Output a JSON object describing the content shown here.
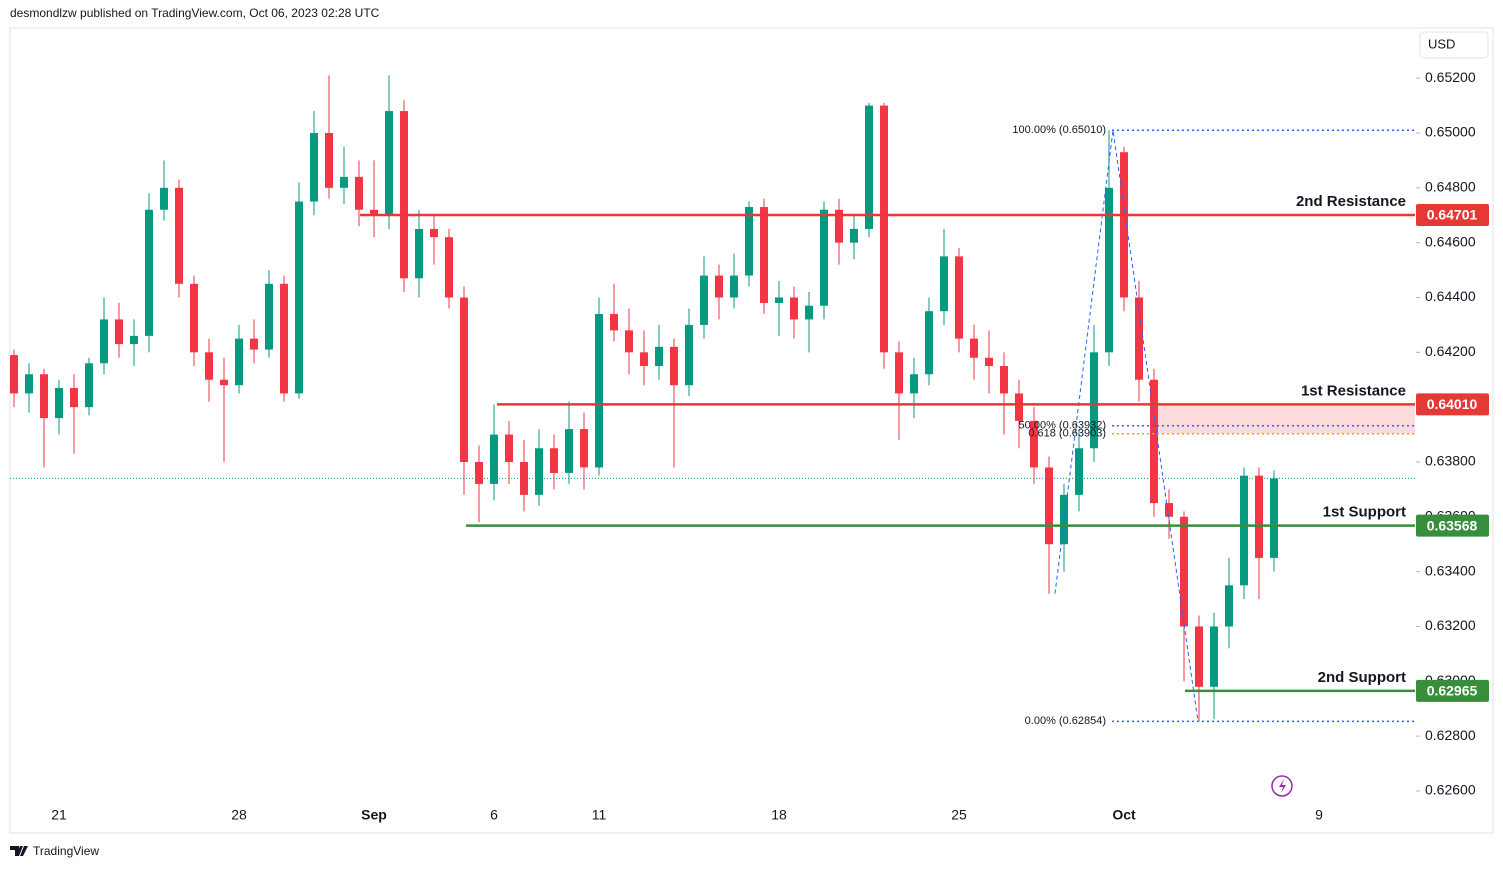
{
  "chart_data": {
    "type": "candlestick",
    "header": "desmondlzw published on TradingView.com, Oct 06, 2023 02:28 UTC",
    "currency": "USD",
    "brand": "TradingView",
    "up_color": "#089981",
    "down_color": "#f23645",
    "categories": [
      null,
      null,
      null,
      "21",
      null,
      null,
      null,
      null,
      null,
      null,
      null,
      null,
      null,
      null,
      null,
      "28",
      null,
      null,
      null,
      null,
      null,
      null,
      null,
      null,
      "Sep",
      null,
      null,
      null,
      null,
      null,
      null,
      null,
      "6",
      null,
      null,
      null,
      null,
      null,
      null,
      "11",
      null,
      null,
      null,
      null,
      null,
      null,
      null,
      null,
      null,
      null,
      null,
      "18",
      null,
      null,
      null,
      null,
      null,
      null,
      null,
      null,
      null,
      null,
      null,
      "25",
      null,
      null,
      null,
      null,
      null,
      null,
      null,
      null,
      null,
      null,
      "Oct",
      null,
      null,
      null,
      null,
      null,
      null,
      null,
      null,
      null,
      null,
      null,
      null,
      "9"
    ],
    "open": [
      0.6419,
      0.6405,
      0.6412,
      0.6396,
      0.6407,
      0.64,
      0.6416,
      0.6432,
      0.6423,
      0.6426,
      0.6472,
      0.648,
      0.6445,
      0.642,
      0.641,
      0.6408,
      0.6425,
      0.6421,
      0.6445,
      0.6405,
      0.6475,
      0.65,
      0.648,
      0.6484,
      0.6472,
      0.647,
      0.6508,
      0.6447,
      0.6465,
      0.6462,
      0.644,
      0.638,
      0.6372,
      0.639,
      0.638,
      0.6368,
      0.6385,
      0.6376,
      0.6392,
      0.6378,
      0.6434,
      0.6428,
      0.642,
      0.6415,
      0.6422,
      0.6408,
      0.643,
      0.6448,
      0.644,
      0.6448,
      0.6473,
      0.6438,
      0.644,
      0.6432,
      0.6437,
      0.6472,
      0.646,
      0.6465,
      0.651,
      0.642,
      0.6405,
      0.6412,
      0.6435,
      0.6455,
      0.6425,
      0.6418,
      0.6415,
      0.6405,
      0.6395,
      0.6378,
      0.635,
      0.6368,
      0.6385,
      0.642,
      0.6493,
      0.644,
      0.641,
      0.6365,
      0.636,
      0.632,
      0.6298,
      0.632,
      0.6335,
      0.6375,
      0.6345,
      null,
      null,
      null
    ],
    "high": [
      0.6421,
      0.6416,
      0.6414,
      0.641,
      0.6412,
      0.6418,
      0.644,
      0.6438,
      0.6432,
      0.6478,
      0.649,
      0.6483,
      0.6448,
      0.6425,
      0.6418,
      0.643,
      0.6432,
      0.645,
      0.6448,
      0.6482,
      0.6508,
      0.6521,
      0.6495,
      0.649,
      0.649,
      0.6521,
      0.6512,
      0.6472,
      0.647,
      0.6465,
      0.6444,
      0.6386,
      0.6401,
      0.6395,
      0.6388,
      0.6392,
      0.639,
      0.6402,
      0.6398,
      0.644,
      0.6445,
      0.6436,
      0.6428,
      0.643,
      0.6425,
      0.6436,
      0.6455,
      0.6452,
      0.6456,
      0.6475,
      0.6476,
      0.6446,
      0.6444,
      0.6442,
      0.6475,
      0.6476,
      0.647,
      0.6511,
      0.6511,
      0.6424,
      0.6418,
      0.644,
      0.6465,
      0.6458,
      0.643,
      0.6428,
      0.642,
      0.641,
      0.64,
      0.6382,
      0.6372,
      0.6392,
      0.643,
      0.6501,
      0.6495,
      0.6446,
      0.6414,
      0.637,
      0.6362,
      0.6324,
      0.6325,
      0.6345,
      0.6378,
      0.6378,
      0.6377,
      null,
      null,
      null
    ],
    "low": [
      0.64,
      0.6398,
      0.6378,
      0.639,
      0.6383,
      0.6397,
      0.6412,
      0.6418,
      0.6415,
      0.642,
      0.6468,
      0.644,
      0.6415,
      0.6402,
      0.638,
      0.6405,
      0.6416,
      0.6418,
      0.6402,
      0.6403,
      0.647,
      0.6476,
      0.6474,
      0.6466,
      0.6462,
      0.6465,
      0.6442,
      0.644,
      0.6452,
      0.6436,
      0.6368,
      0.6358,
      0.6366,
      0.6372,
      0.6362,
      0.6364,
      0.637,
      0.6372,
      0.637,
      0.6375,
      0.6424,
      0.6412,
      0.6408,
      0.641,
      0.6378,
      0.6404,
      0.6425,
      0.6432,
      0.6436,
      0.6444,
      0.6434,
      0.6426,
      0.6425,
      0.642,
      0.6432,
      0.6452,
      0.6454,
      0.6462,
      0.6414,
      0.6388,
      0.6396,
      0.6408,
      0.643,
      0.642,
      0.641,
      0.6405,
      0.639,
      0.6385,
      0.6372,
      0.6332,
      0.634,
      0.6362,
      0.638,
      0.6415,
      0.6435,
      0.6402,
      0.636,
      0.6352,
      0.63,
      0.62854,
      0.62862,
      0.6312,
      0.633,
      0.633,
      0.634,
      null,
      null,
      null
    ],
    "close": [
      0.6405,
      0.6412,
      0.6396,
      0.6407,
      0.64,
      0.6416,
      0.6432,
      0.6423,
      0.6426,
      0.6472,
      0.648,
      0.6445,
      0.642,
      0.641,
      0.6408,
      0.6425,
      0.6421,
      0.6445,
      0.6405,
      0.6475,
      0.65,
      0.648,
      0.6484,
      0.6472,
      0.647,
      0.6508,
      0.6447,
      0.6465,
      0.6462,
      0.644,
      0.638,
      0.6372,
      0.639,
      0.638,
      0.6368,
      0.6385,
      0.6376,
      0.6392,
      0.6378,
      0.6434,
      0.6428,
      0.642,
      0.6415,
      0.6422,
      0.6408,
      0.643,
      0.6448,
      0.644,
      0.6448,
      0.6473,
      0.6438,
      0.644,
      0.6432,
      0.6437,
      0.6472,
      0.646,
      0.6465,
      0.651,
      0.642,
      0.6405,
      0.6412,
      0.6435,
      0.6455,
      0.6425,
      0.6418,
      0.6415,
      0.6405,
      0.6395,
      0.6378,
      0.635,
      0.6368,
      0.6385,
      0.642,
      0.648,
      0.644,
      0.641,
      0.6365,
      0.636,
      0.632,
      0.6298,
      0.632,
      0.6335,
      0.6375,
      0.6345,
      0.6374,
      null,
      null,
      null
    ],
    "ylim": [
      0.62567,
      0.65383
    ],
    "yticks": [
      {
        "value": 0.626,
        "label": "0.62600"
      },
      {
        "value": 0.628,
        "label": "0.62800"
      },
      {
        "value": 0.63,
        "label": "0.63000"
      },
      {
        "value": 0.632,
        "label": "0.63200"
      },
      {
        "value": 0.634,
        "label": "0.63400"
      },
      {
        "value": 0.636,
        "label": "0.63600"
      },
      {
        "value": 0.638,
        "label": "0.63800"
      },
      {
        "value": 0.64,
        "label": "0.64000"
      },
      {
        "value": 0.642,
        "label": "0.64200"
      },
      {
        "value": 0.644,
        "label": "0.64400"
      },
      {
        "value": 0.646,
        "label": "0.64600"
      },
      {
        "value": 0.648,
        "label": "0.64800"
      },
      {
        "value": 0.65,
        "label": "0.65000"
      },
      {
        "value": 0.652,
        "label": "0.65200"
      }
    ],
    "levels": [
      {
        "name": "2nd Resistance",
        "value": 0.64701,
        "value_label": "0.64701",
        "color": "#e53935"
      },
      {
        "name": "1st Resistance",
        "value": 0.6401,
        "value_label": "0.64010",
        "color": "#e53935"
      },
      {
        "name": "1st Support",
        "value": 0.63568,
        "value_label": "0.63568",
        "color": "#388e3c"
      },
      {
        "name": "2nd Support",
        "value": 0.62965,
        "value_label": "0.62965",
        "color": "#388e3c"
      }
    ],
    "fib": [
      {
        "label": "100.00% (0.65010)",
        "value": 0.6501,
        "color": "#2962ff"
      },
      {
        "label": "50.00% (0.63932)",
        "value": 0.63932,
        "color": "#2962ff"
      },
      {
        "label": "0.618 (0.63903)",
        "value": 0.63903,
        "color": "#f59e0b"
      },
      {
        "label": "0.00% (0.62854)",
        "value": 0.62854,
        "color": "#2962ff"
      }
    ]
  }
}
